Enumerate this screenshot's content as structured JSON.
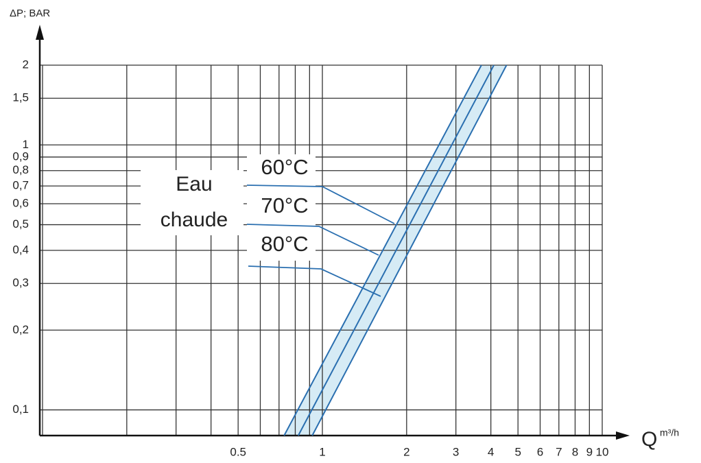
{
  "chart_data": {
    "type": "line",
    "ylabel": "ΔP; BAR",
    "xlabel": "Q",
    "xunit": "m³/h",
    "annotations": [
      "Eau",
      "chaude"
    ],
    "xscale": "log",
    "yscale": "log",
    "grid": true,
    "xlim": [
      0.1,
      10
    ],
    "ylim": [
      0.08,
      2
    ],
    "xticks": [
      0.5,
      1,
      2,
      3,
      4,
      5,
      6,
      7,
      8,
      9,
      10
    ],
    "xgrid_minor": [
      0.1,
      0.2,
      0.3,
      0.4,
      0.6,
      0.7,
      0.8,
      0.9
    ],
    "yticks": [
      {
        "value": 0.1,
        "label": "0,1"
      },
      {
        "value": 0.2,
        "label": "0,2"
      },
      {
        "value": 0.3,
        "label": "0,3"
      },
      {
        "value": 0.4,
        "label": "0,4"
      },
      {
        "value": 0.5,
        "label": "0,5"
      },
      {
        "value": 0.6,
        "label": "0,6"
      },
      {
        "value": 0.7,
        "label": "0,7"
      },
      {
        "value": 0.8,
        "label": "0,8"
      },
      {
        "value": 0.9,
        "label": "0,9"
      },
      1,
      {
        "value": 1.5,
        "label": "1,5"
      },
      2
    ],
    "series": [
      {
        "name": "60°C",
        "color": "#2a6fb0",
        "x": [
          0.73,
          3.7
        ],
        "values": [
          0.08,
          2
        ]
      },
      {
        "name": "70°C",
        "color": "#2a6fb0",
        "x": [
          0.82,
          4.1
        ],
        "values": [
          0.08,
          2
        ]
      },
      {
        "name": "80°C",
        "color": "#2a6fb0",
        "x": [
          0.92,
          4.55
        ],
        "values": [
          0.08,
          2
        ]
      }
    ]
  }
}
